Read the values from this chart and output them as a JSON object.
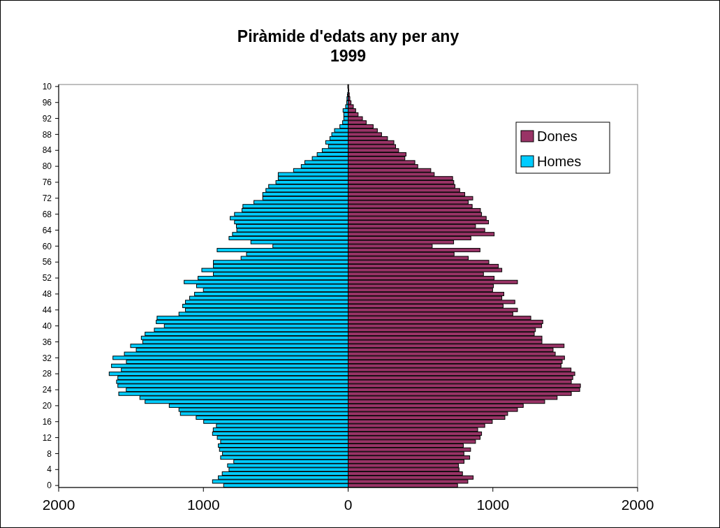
{
  "chart_data": {
    "type": "bar",
    "orientation": "horizontal",
    "stacked": true,
    "title": "Piràmide d'edats any per any\n1999",
    "categories": [
      "10",
      null,
      null,
      null,
      "96",
      null,
      null,
      null,
      "92",
      null,
      null,
      null,
      "88",
      null,
      null,
      null,
      "84",
      null,
      null,
      null,
      "80",
      null,
      null,
      null,
      "76",
      null,
      null,
      null,
      "72",
      null,
      null,
      null,
      "68",
      null,
      null,
      null,
      "64",
      null,
      null,
      null,
      "60",
      null,
      null,
      null,
      "56",
      null,
      null,
      null,
      "52",
      null,
      null,
      null,
      "48",
      null,
      null,
      null,
      "44",
      null,
      null,
      null,
      "40",
      null,
      null,
      null,
      "36",
      null,
      null,
      null,
      "32",
      null,
      null,
      null,
      "28",
      null,
      null,
      null,
      "24",
      null,
      null,
      null,
      "20",
      null,
      null,
      null,
      "16",
      null,
      null,
      null,
      "12",
      null,
      null,
      null,
      "8",
      null,
      null,
      null,
      "4",
      null,
      null,
      null,
      "0"
    ],
    "series": [
      {
        "name": "Dones",
        "color": "#993366",
        "values": [
          3,
          5,
          8,
          12,
          20,
          36,
          52,
          69,
          99,
          125,
          173,
          202,
          231,
          272,
          316,
          328,
          349,
          400,
          392,
          461,
          481,
          571,
          595,
          722,
          730,
          738,
          771,
          806,
          861,
          830,
          857,
          914,
          922,
          954,
          970,
          880,
          944,
          1009,
          848,
          729,
          581,
          911,
          732,
          830,
          972,
          1038,
          1062,
          935,
          1009,
          1170,
          1004,
          998,
          1076,
          1062,
          1152,
          1071,
          1170,
          1138,
          1262,
          1345,
          1337,
          1294,
          1286,
          1339,
          1339,
          1492,
          1416,
          1431,
          1495,
          1479,
          1471,
          1540,
          1566,
          1552,
          1542,
          1605,
          1600,
          1542,
          1444,
          1358,
          1210,
          1170,
          1102,
          1083,
          996,
          944,
          895,
          922,
          912,
          880,
          796,
          846,
          800,
          840,
          801,
          762,
          766,
          790,
          864,
          827,
          756
        ]
      },
      {
        "name": "Homes",
        "color": "#00ccff",
        "values": [
          -2,
          null,
          -5,
          -8,
          -10,
          -17,
          -35,
          -30,
          -30,
          -38,
          -57,
          -94,
          -113,
          -126,
          -155,
          -136,
          -179,
          -214,
          -248,
          -299,
          -324,
          -377,
          -483,
          -483,
          -499,
          -549,
          -568,
          -590,
          -590,
          -651,
          -727,
          -733,
          -785,
          -815,
          -785,
          -772,
          -769,
          -799,
          -823,
          -672,
          -520,
          -905,
          -702,
          -740,
          -931,
          -931,
          -1011,
          -931,
          -1037,
          -1133,
          -1047,
          -1000,
          -1061,
          -1095,
          -1124,
          -1143,
          -1124,
          -1169,
          -1320,
          -1326,
          -1270,
          -1339,
          -1403,
          -1429,
          -1419,
          -1503,
          -1464,
          -1546,
          -1625,
          -1532,
          -1635,
          -1567,
          -1651,
          -1591,
          -1600,
          -1591,
          -1533,
          -1585,
          -1439,
          -1403,
          -1236,
          -1169,
          -1159,
          -1050,
          -998,
          -910,
          -932,
          -937,
          -904,
          -881,
          -897,
          -889,
          -868,
          -881,
          -790,
          -833,
          -823,
          -870,
          -897,
          -937,
          -860
        ]
      }
    ],
    "xlim": [
      -2000,
      2000
    ],
    "xticks": [
      {
        "value": -2000,
        "label": "2000"
      },
      {
        "value": -1000,
        "label": "1000"
      },
      0,
      1000,
      2000
    ],
    "legend": "top right",
    "grid": false
  }
}
